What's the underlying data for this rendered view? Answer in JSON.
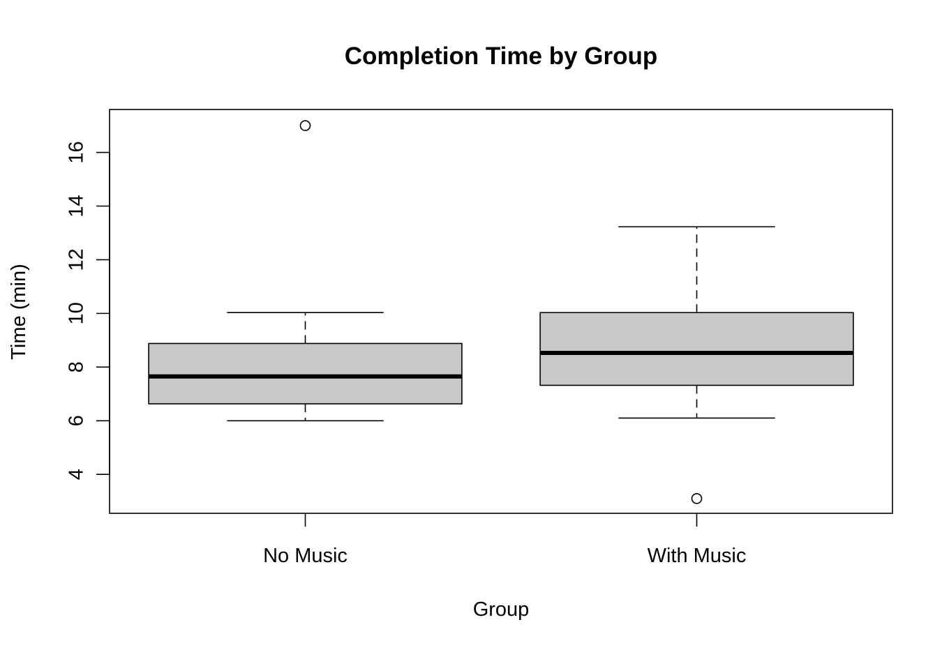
{
  "chart_data": {
    "type": "boxplot",
    "title": "Completion Time by Group",
    "xlabel": "Group",
    "ylabel": "Time (min)",
    "categories": [
      "No Music",
      "With Music"
    ],
    "y_ticks": [
      4,
      6,
      8,
      10,
      12,
      14,
      16
    ],
    "ylim": [
      2.55,
      17.6
    ],
    "grid": false,
    "legend": "none",
    "box_fill": "#c8c8c8",
    "boxes": [
      {
        "name": "No Music",
        "whisker_low": 6.0,
        "q1": 6.63,
        "median": 7.65,
        "q3": 8.88,
        "whisker_high": 10.03,
        "outliers": [
          17.0
        ]
      },
      {
        "name": "With Music",
        "whisker_low": 6.1,
        "q1": 7.32,
        "median": 8.53,
        "q3": 10.03,
        "whisker_high": 13.23,
        "outliers": [
          3.1
        ]
      }
    ]
  }
}
